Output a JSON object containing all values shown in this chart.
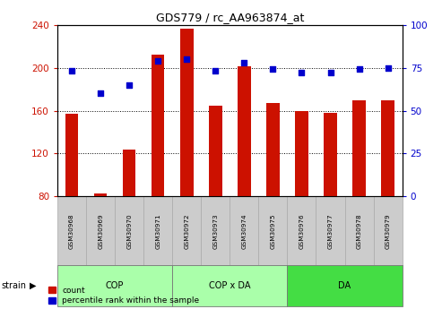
{
  "title": "GDS779 / rc_AA963874_at",
  "samples": [
    "GSM30968",
    "GSM30969",
    "GSM30970",
    "GSM30971",
    "GSM30972",
    "GSM30973",
    "GSM30974",
    "GSM30975",
    "GSM30976",
    "GSM30977",
    "GSM30978",
    "GSM30979"
  ],
  "counts": [
    157,
    83,
    124,
    212,
    236,
    165,
    201,
    167,
    160,
    158,
    170,
    170
  ],
  "percentiles": [
    73,
    60,
    65,
    79,
    80,
    73,
    78,
    74,
    72,
    72,
    74,
    75
  ],
  "count_base": 80,
  "ylim_left": [
    80,
    240
  ],
  "ylim_right": [
    0,
    100
  ],
  "yticks_left": [
    80,
    120,
    160,
    200,
    240
  ],
  "yticks_right": [
    0,
    25,
    50,
    75,
    100
  ],
  "group_ranges": [
    [
      0,
      3
    ],
    [
      4,
      7
    ],
    [
      8,
      11
    ]
  ],
  "group_labels": [
    "COP",
    "COP x DA",
    "DA"
  ],
  "group_colors": [
    "#aaffaa",
    "#aaffaa",
    "#44dd44"
  ],
  "bar_color": "#CC1100",
  "dot_color": "#0000CC",
  "tick_label_bg": "#cccccc",
  "strain_label": "strain",
  "legend_count": "count",
  "legend_pct": "percentile rank within the sample"
}
